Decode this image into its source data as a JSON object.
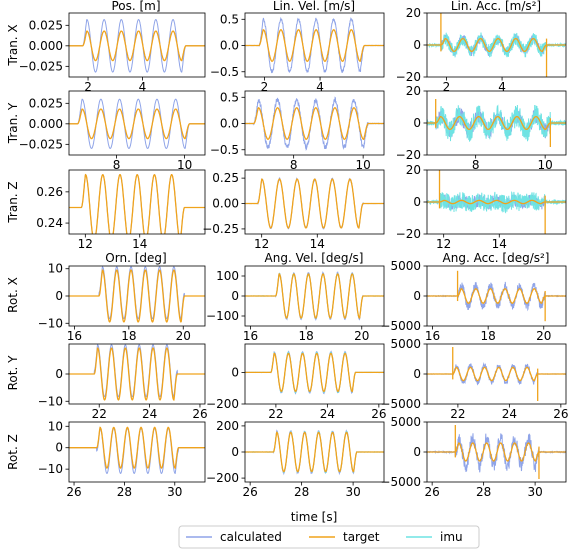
{
  "figure": {
    "xlabel": "time [s]",
    "col_titles": [
      "Pos. [m]",
      "Lin. Vel. [m/s]",
      "Lin. Acc. [m/s²]",
      "Orn. [deg]",
      "Ang. Vel. [deg/s]",
      "Ang. Acc. [deg/s²]"
    ],
    "row_labels": [
      "Tran. X",
      "Tran. Y",
      "Tran. Z",
      "Rot. X",
      "Rot. Y",
      "Rot. Z"
    ]
  },
  "legend": {
    "items": [
      {
        "label": "calculated",
        "color": "#8fa4e8"
      },
      {
        "label": "target",
        "color": "#f0a31c"
      },
      {
        "label": "imu",
        "color": "#6fe3e3"
      }
    ]
  },
  "chart_data": [
    {
      "type": "line",
      "row": "Tran. X",
      "title": "Pos. [m]",
      "xlim": [
        1.3,
        6.3
      ],
      "ylim": [
        -0.038,
        0.04
      ],
      "xticks": [
        2,
        4
      ],
      "xtick_labels": [
        "2",
        "4"
      ],
      "yticks": [
        -0.025,
        0,
        0.025
      ],
      "ytick_labels": [
        "−0.025",
        "0.000",
        "0.025"
      ],
      "signal": {
        "start": 1.8,
        "end": 5.6,
        "cycles": 6,
        "target_amp": 0.018,
        "calc_amp": 0.032,
        "noise": 0,
        "imu": false
      }
    },
    {
      "type": "line",
      "row": "Tran. X",
      "title": "Lin. Vel. [m/s]",
      "xlim": [
        1.3,
        6.3
      ],
      "ylim": [
        -0.6,
        0.62
      ],
      "xticks": [
        2,
        4
      ],
      "xtick_labels": [
        "2",
        "4"
      ],
      "yticks": [
        -0.5,
        0,
        0.5
      ],
      "ytick_labels": [
        "−0.5",
        "0.0",
        "0.5"
      ],
      "signal": {
        "start": 1.8,
        "end": 5.6,
        "cycles": 6,
        "target_amp": 0.3,
        "calc_amp": 0.5,
        "noise": 0.03,
        "imu": false
      }
    },
    {
      "type": "line",
      "row": "Tran. X",
      "title": "Lin. Acc. [m/s²]",
      "xlim": [
        1.3,
        6.3
      ],
      "ylim": [
        -20,
        20
      ],
      "xticks": [
        2,
        4
      ],
      "xtick_labels": [
        "2",
        "4"
      ],
      "yticks": [
        -20,
        0,
        20
      ],
      "ytick_labels": [
        "−20",
        "0",
        "20"
      ],
      "signal": {
        "start": 1.8,
        "end": 5.6,
        "cycles": 6,
        "target_amp": 4,
        "calc_amp": 4,
        "noise": 3,
        "imu": true,
        "spike": 20
      }
    },
    {
      "type": "line",
      "row": "Tran. Y",
      "title": "",
      "xlim": [
        6.6,
        10.6
      ],
      "ylim": [
        -0.038,
        0.04
      ],
      "xticks": [
        8,
        10
      ],
      "xtick_labels": [
        "8",
        "10"
      ],
      "yticks": [
        -0.025,
        0,
        0.025
      ],
      "ytick_labels": [
        "−0.025",
        "0.000",
        "0.025"
      ],
      "signal": {
        "start": 6.85,
        "end": 10.15,
        "cycles": 6,
        "target_amp": 0.018,
        "calc_amp": 0.03,
        "noise": 0,
        "imu": false
      }
    },
    {
      "type": "line",
      "row": "Tran. Y",
      "title": "",
      "xlim": [
        6.6,
        10.6
      ],
      "ylim": [
        -0.6,
        0.62
      ],
      "xticks": [
        8,
        10
      ],
      "xtick_labels": [
        "8",
        "10"
      ],
      "yticks": [
        -0.5,
        0,
        0.5
      ],
      "ytick_labels": [
        "−0.5",
        "0.0",
        "0.5"
      ],
      "signal": {
        "start": 6.85,
        "end": 10.15,
        "cycles": 6,
        "target_amp": 0.3,
        "calc_amp": 0.45,
        "noise": 0.05,
        "imu": false
      }
    },
    {
      "type": "line",
      "row": "Tran. Y",
      "title": "",
      "xlim": [
        6.6,
        10.6
      ],
      "ylim": [
        -20,
        20
      ],
      "xticks": [
        8,
        10
      ],
      "xtick_labels": [
        "8",
        "10"
      ],
      "yticks": [
        -20,
        0,
        20
      ],
      "ytick_labels": [
        "−20",
        "0",
        "20"
      ],
      "signal": {
        "start": 6.85,
        "end": 10.15,
        "cycles": 6,
        "target_amp": 4,
        "calc_amp": 5,
        "noise": 5,
        "imu": true,
        "spike": 15
      }
    },
    {
      "type": "line",
      "row": "Tran. Z",
      "title": "",
      "xlim": [
        11.4,
        16.4
      ],
      "ylim": [
        0.233,
        0.274
      ],
      "xticks": [
        12,
        14
      ],
      "xtick_labels": [
        "12",
        "14"
      ],
      "yticks": [
        0.24,
        0.26
      ],
      "ytick_labels": [
        "0.24",
        "0.26"
      ],
      "signal": {
        "start": 11.85,
        "end": 15.65,
        "cycles": 6,
        "target_amp": 0.021,
        "calc_amp": 0.021,
        "noise": 0,
        "imu": false,
        "offset": 0.25
      }
    },
    {
      "type": "line",
      "row": "Tran. Z",
      "title": "",
      "xlim": [
        11.4,
        16.4
      ],
      "ylim": [
        -0.3,
        0.33
      ],
      "xticks": [
        12,
        14
      ],
      "xtick_labels": [
        "12",
        "14"
      ],
      "yticks": [
        -0.25,
        0,
        0.25
      ],
      "ytick_labels": [
        "−0.25",
        "0.00",
        "0.25"
      ],
      "signal": {
        "start": 11.85,
        "end": 15.65,
        "cycles": 6,
        "target_amp": 0.24,
        "calc_amp": 0.24,
        "noise": 0.01,
        "imu": false
      }
    },
    {
      "type": "line",
      "row": "Tran. Z",
      "title": "",
      "xlim": [
        11.4,
        16.4
      ],
      "ylim": [
        -20,
        20
      ],
      "xticks": [
        12,
        14
      ],
      "xtick_labels": [
        "12",
        "14"
      ],
      "yticks": [
        -20,
        0,
        20
      ],
      "ytick_labels": [
        "−20",
        "0",
        "20"
      ],
      "signal": {
        "start": 11.85,
        "end": 15.65,
        "cycles": 6,
        "target_amp": 1,
        "calc_amp": 1,
        "noise": 4,
        "imu": true,
        "spike": 20
      }
    },
    {
      "type": "line",
      "row": "Rot. X",
      "title": "Orn. [deg]",
      "xlim": [
        15.8,
        20.8
      ],
      "ylim": [
        -11,
        11
      ],
      "xticks": [
        16,
        18,
        20
      ],
      "xtick_labels": [
        "16",
        "18",
        "20"
      ],
      "yticks": [
        -10,
        0,
        10
      ],
      "ytick_labels": [
        "−10",
        "0",
        "10"
      ],
      "signal": {
        "start": 16.9,
        "end": 20.05,
        "cycles": 6,
        "target_amp": 9.5,
        "calc_amp": 9.5,
        "noise": 0,
        "imu": false,
        "calc_offset": 1.2
      }
    },
    {
      "type": "line",
      "row": "Rot. X",
      "title": "Ang. Vel. [deg/s]",
      "xlim": [
        15.8,
        20.8
      ],
      "ylim": [
        -150,
        150
      ],
      "xticks": [
        16,
        18,
        20
      ],
      "xtick_labels": [
        "16",
        "18",
        "20"
      ],
      "yticks": [
        -100,
        0,
        100
      ],
      "ytick_labels": [
        "−100",
        "0",
        "100"
      ],
      "signal": {
        "start": 16.9,
        "end": 20.05,
        "cycles": 6,
        "target_amp": 110,
        "calc_amp": 115,
        "noise": 3,
        "imu": true
      }
    },
    {
      "type": "line",
      "row": "Rot. X",
      "title": "Ang. Acc. [deg/s²]",
      "xlim": [
        15.8,
        20.8
      ],
      "ylim": [
        -5000,
        5000
      ],
      "xticks": [
        16,
        18,
        20
      ],
      "xtick_labels": [
        "16",
        "18",
        "20"
      ],
      "yticks": [
        -5000,
        0,
        5000
      ],
      "ytick_labels": [
        "−5000",
        "0",
        "5000"
      ],
      "signal": {
        "start": 16.9,
        "end": 20.05,
        "cycles": 6,
        "target_amp": 1200,
        "calc_amp": 1700,
        "noise": 700,
        "imu": false,
        "spike": 4200
      }
    },
    {
      "type": "line",
      "row": "Rot. Y",
      "title": "",
      "xlim": [
        20.8,
        26.2
      ],
      "ylim": [
        -11,
        11
      ],
      "xticks": [
        22,
        24,
        26
      ],
      "xtick_labels": [
        "22",
        "24",
        "26"
      ],
      "yticks": [
        -10,
        0
      ],
      "ytick_labels": [
        "−10",
        "0"
      ],
      "signal": {
        "start": 21.8,
        "end": 25.1,
        "cycles": 6,
        "target_amp": 9.5,
        "calc_amp": 9.5,
        "noise": 0,
        "imu": false,
        "calc_offset": 1.2
      }
    },
    {
      "type": "line",
      "row": "Rot. Y",
      "title": "",
      "xlim": [
        20.8,
        26.2
      ],
      "ylim": [
        -200,
        180
      ],
      "xticks": [
        22,
        24,
        26
      ],
      "xtick_labels": [
        "22",
        "24",
        "26"
      ],
      "yticks": [
        -200,
        0
      ],
      "ytick_labels": [
        "−200",
        "0"
      ],
      "signal": {
        "start": 21.8,
        "end": 25.1,
        "cycles": 6,
        "target_amp": 120,
        "calc_amp": 130,
        "noise": 3,
        "imu": true
      }
    },
    {
      "type": "line",
      "row": "Rot. Y",
      "title": "",
      "xlim": [
        20.8,
        26.2
      ],
      "ylim": [
        -5000,
        5000
      ],
      "xticks": [
        22,
        24,
        26
      ],
      "xtick_labels": [
        "22",
        "24",
        "26"
      ],
      "yticks": [
        -5000,
        0,
        5000
      ],
      "ytick_labels": [
        "−5000",
        "0",
        "5000"
      ],
      "signal": {
        "start": 21.8,
        "end": 25.1,
        "cycles": 6,
        "target_amp": 1100,
        "calc_amp": 1400,
        "noise": 400,
        "imu": false,
        "spike": 4500
      }
    },
    {
      "type": "line",
      "row": "Rot. Z",
      "title": "",
      "xlim": [
        25.8,
        31.2
      ],
      "ylim": [
        -16,
        12
      ],
      "xticks": [
        26,
        28,
        30
      ],
      "xtick_labels": [
        "26",
        "28",
        "30"
      ],
      "yticks": [
        -10,
        0,
        10
      ],
      "ytick_labels": [
        "−10",
        "0",
        "10"
      ],
      "signal": {
        "start": 26.9,
        "end": 30.15,
        "cycles": 6,
        "target_amp": 9.5,
        "calc_amp": 10.5,
        "noise": 0,
        "imu": false,
        "calc_offset": -1.5
      }
    },
    {
      "type": "line",
      "row": "Rot. Z",
      "title": "",
      "xlim": [
        25.8,
        31.2
      ],
      "ylim": [
        -230,
        230
      ],
      "xticks": [
        26,
        28,
        30
      ],
      "xtick_labels": [
        "26",
        "28",
        "30"
      ],
      "yticks": [
        -200,
        0,
        200
      ],
      "ytick_labels": [
        "−200",
        "0",
        "200"
      ],
      "signal": {
        "start": 26.9,
        "end": 30.15,
        "cycles": 6,
        "target_amp": 150,
        "calc_amp": 160,
        "noise": 5,
        "imu": true
      }
    },
    {
      "type": "line",
      "row": "Rot. Z",
      "title": "",
      "xlim": [
        25.8,
        31.2
      ],
      "ylim": [
        -5000,
        5000
      ],
      "xticks": [
        26,
        28,
        30
      ],
      "xtick_labels": [
        "26",
        "28",
        "30"
      ],
      "yticks": [
        -5000,
        0,
        5000
      ],
      "ytick_labels": [
        "−5000",
        "0",
        "5000"
      ],
      "signal": {
        "start": 26.9,
        "end": 30.15,
        "cycles": 6,
        "target_amp": 1500,
        "calc_amp": 2300,
        "noise": 1100,
        "imu": false,
        "spike": 4500
      }
    }
  ]
}
